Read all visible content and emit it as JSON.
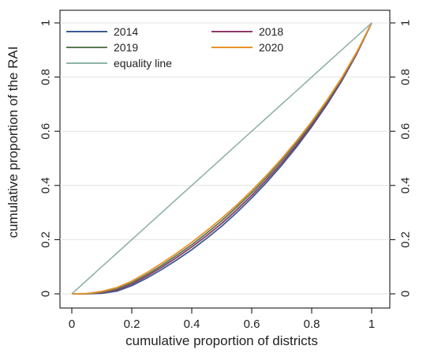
{
  "chart_data": {
    "type": "line",
    "xlabel": "cumulative proportion of districts",
    "ylabel": "cumulative proportion of the RAI",
    "xlim": [
      0,
      1
    ],
    "ylim": [
      0,
      1
    ],
    "x_ticks": [
      "0",
      "0.2",
      "0.4",
      "0.6",
      "0.8",
      "1"
    ],
    "y_ticks": [
      "0",
      "0.2",
      "0.4",
      "0.6",
      "0.8",
      "1"
    ],
    "right_axis": true,
    "grid": "horizontal",
    "legend_position": "top-inside",
    "x": [
      0.0,
      0.05,
      0.1,
      0.15,
      0.2,
      0.25,
      0.3,
      0.35,
      0.4,
      0.45,
      0.5,
      0.55,
      0.6,
      0.65,
      0.7,
      0.75,
      0.8,
      0.85,
      0.9,
      0.95,
      1.0
    ],
    "series": [
      {
        "name": "2014",
        "color": "#3c5a92",
        "values": [
          0.0,
          0.0,
          0.002,
          0.01,
          0.03,
          0.058,
          0.09,
          0.125,
          0.163,
          0.205,
          0.25,
          0.3,
          0.354,
          0.412,
          0.475,
          0.543,
          0.617,
          0.697,
          0.785,
          0.885,
          1.0
        ]
      },
      {
        "name": "2018",
        "color": "#8b3a6a",
        "values": [
          0.0,
          0.0,
          0.004,
          0.014,
          0.036,
          0.065,
          0.098,
          0.134,
          0.173,
          0.215,
          0.26,
          0.31,
          0.363,
          0.421,
          0.483,
          0.55,
          0.623,
          0.702,
          0.789,
          0.887,
          1.0
        ]
      },
      {
        "name": "2019",
        "color": "#5a7a50",
        "values": [
          0.0,
          0.0,
          0.006,
          0.018,
          0.041,
          0.071,
          0.105,
          0.142,
          0.181,
          0.224,
          0.27,
          0.32,
          0.373,
          0.43,
          0.492,
          0.558,
          0.63,
          0.708,
          0.793,
          0.89,
          1.0
        ]
      },
      {
        "name": "2020",
        "color": "#e8922a",
        "values": [
          0.0,
          0.001,
          0.009,
          0.023,
          0.047,
          0.078,
          0.113,
          0.15,
          0.19,
          0.233,
          0.279,
          0.328,
          0.381,
          0.438,
          0.499,
          0.565,
          0.636,
          0.713,
          0.797,
          0.892,
          1.0
        ]
      },
      {
        "name": "equality line",
        "color": "#8fb3aa",
        "values": [
          0.0,
          0.05,
          0.1,
          0.15,
          0.2,
          0.25,
          0.3,
          0.35,
          0.4,
          0.45,
          0.5,
          0.55,
          0.6,
          0.65,
          0.7,
          0.75,
          0.8,
          0.85,
          0.9,
          0.95,
          1.0
        ]
      }
    ],
    "legend": [
      {
        "label": "2014",
        "color": "#3c5a92"
      },
      {
        "label": "2018",
        "color": "#8b3a6a"
      },
      {
        "label": "2019",
        "color": "#5a7a50"
      },
      {
        "label": "2020",
        "color": "#e8922a"
      },
      {
        "label": "equality line",
        "color": "#8fb3aa"
      }
    ]
  }
}
